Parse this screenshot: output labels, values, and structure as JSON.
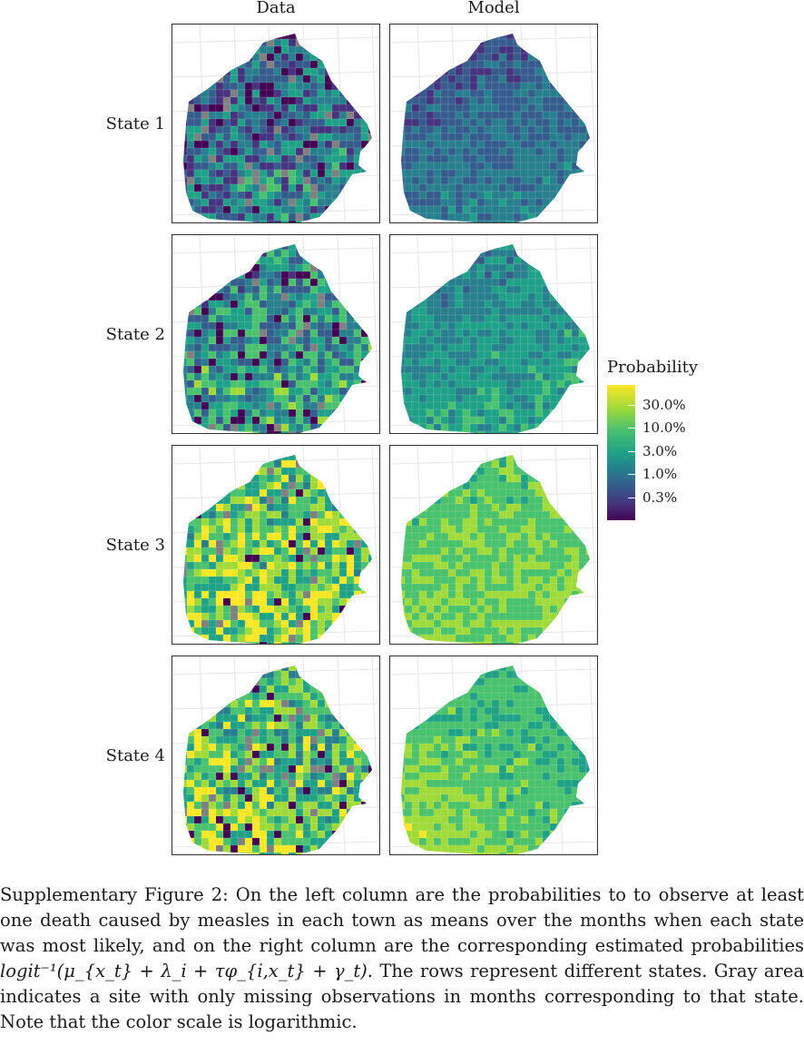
{
  "columns": [
    "Data",
    "Model"
  ],
  "rows": [
    "State 1",
    "State 2",
    "State 3",
    "State 4"
  ],
  "legend": {
    "title": "Probability",
    "labels": [
      "30.0%",
      "10.0%",
      "3.0%",
      "1.0%",
      "0.3%"
    ],
    "scale": "logarithmic",
    "colormap": [
      "#440154",
      "#46327e",
      "#365c8d",
      "#277f8e",
      "#1fa187",
      "#4ac16d",
      "#a0da39",
      "#fde725"
    ]
  },
  "missing_color": "#808080",
  "caption": {
    "part1": "Supplementary Figure 2: On the left column are the probabilities to to observe at least one death caused by measles in each town as means over the months when each state was most likely, and on the right column are the corresponding estimated probabilities ",
    "formula": "logit⁻¹(μ_{x_t} + λ_i + τφ_{i,x_t} + γ_t)",
    "part2": ". The rows represent different states. Gray area indicates a site with only missing observations in months corresponding to that state. Note that the color scale is logarithmic."
  }
}
